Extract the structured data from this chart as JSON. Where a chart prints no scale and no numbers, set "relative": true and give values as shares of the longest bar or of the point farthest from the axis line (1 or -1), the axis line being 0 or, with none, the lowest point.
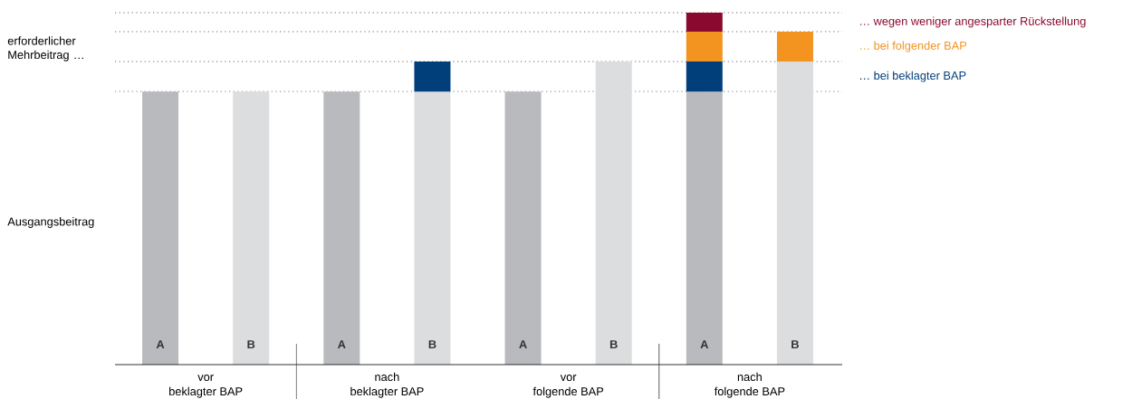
{
  "chart_data": {
    "type": "bar",
    "relative": true,
    "stacked": true,
    "categories": [
      "A",
      "B",
      "A",
      "B",
      "A",
      "B",
      "A",
      "B"
    ],
    "series": [
      {
        "colors": [
          "#b9babe",
          "#dcdddf",
          "#b9babe",
          "#dcdddf",
          "#b9babe",
          "#dcdddf",
          "#b9babe",
          "#dcdddf"
        ],
        "values": [
          0.776,
          0.776,
          0.776,
          0.776,
          0.776,
          0.861,
          0.776,
          0.861
        ]
      },
      {
        "name": "… bei beklagter BAP",
        "color": "#003f7a",
        "values": [
          null,
          null,
          null,
          0.085,
          null,
          null,
          0.085,
          null
        ]
      },
      {
        "name": "… bei folgender BAP",
        "color": "#f39320",
        "values": [
          null,
          null,
          null,
          null,
          null,
          null,
          0.085,
          0.085
        ]
      },
      {
        "name": "… wegen weniger angesparter Rückstellung",
        "color": "#8a0a2f",
        "values": [
          null,
          null,
          null,
          null,
          null,
          null,
          0.054,
          null
        ]
      }
    ],
    "ref_lines": [
      {
        "axis": "y",
        "value": 0.776,
        "color": "#9a9a9a",
        "line_style": "dotted"
      },
      {
        "axis": "y",
        "value": 0.861,
        "color": "#9a9a9a",
        "line_style": "dotted"
      },
      {
        "axis": "y",
        "value": 0.946,
        "color": "#9a9a9a",
        "line_style": "dotted"
      },
      {
        "axis": "y",
        "value": 1.0,
        "color": "#9a9a9a",
        "line_style": "dotted"
      }
    ],
    "annotations": [
      "erforderlicher Mehrbeitrag …",
      "Ausgangsbeitrag",
      "vor",
      "beklagter BAP",
      "nach",
      "beklagter BAP",
      "vor",
      "folgende BAP",
      "nach",
      "folgende BAP"
    ],
    "line_style": "solid"
  }
}
